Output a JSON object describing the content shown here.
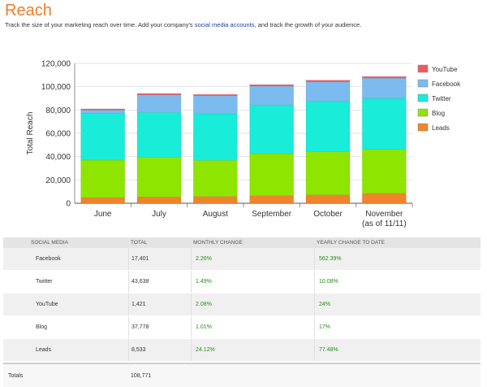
{
  "header": {
    "title": "Reach",
    "subtitle_before": "Track the size of your marketing reach over time. Add your company's ",
    "subtitle_link": "social media accounts",
    "subtitle_after": ", and track the growth of your audience."
  },
  "chart_data": {
    "type": "bar",
    "stacked": true,
    "ylabel": "Total Reach",
    "ylim": [
      0,
      120000
    ],
    "yticks": [
      "0",
      "20,000",
      "40,000",
      "60,000",
      "80,000",
      "100,000",
      "120,000"
    ],
    "ytick_values": [
      0,
      20000,
      40000,
      60000,
      80000,
      100000,
      120000
    ],
    "categories": [
      "June",
      "July",
      "August",
      "September",
      "October",
      "November"
    ],
    "category_sublabels": [
      "",
      "",
      "",
      "",
      "",
      "(as of 11/11)"
    ],
    "legend_position": "right",
    "series": [
      {
        "name": "Leads",
        "color": "#f0842c",
        "values": [
          5000,
          5500,
          5800,
          6500,
          7200,
          8533
        ]
      },
      {
        "name": "Blog",
        "color": "#8ee600",
        "values": [
          32000,
          34000,
          31000,
          36000,
          37000,
          37778
        ]
      },
      {
        "name": "Twitter",
        "color": "#19ecd8",
        "values": [
          40000,
          38500,
          40000,
          42000,
          43500,
          43638
        ]
      },
      {
        "name": "Facebook",
        "color": "#7bbbef",
        "values": [
          3000,
          15000,
          15500,
          16000,
          16500,
          17401
        ]
      },
      {
        "name": "YouTube",
        "color": "#ef5a60",
        "values": [
          1000,
          1200,
          1100,
          1300,
          1400,
          1421
        ]
      }
    ]
  },
  "table": {
    "headers": [
      "SOCIAL MEDIA",
      "TOTAL",
      "MONTHLY CHANGE",
      "YEARLY CHANGE TO DATE"
    ],
    "rows": [
      {
        "name": "Facebook",
        "total": "17,401",
        "monthly": "2.26%",
        "yearly": "562.39%"
      },
      {
        "name": "Twitter",
        "total": "43,638",
        "monthly": "1.49%",
        "yearly": "10.08%"
      },
      {
        "name": "YouTube",
        "total": "1,421",
        "monthly": "2.08%",
        "yearly": "24%"
      },
      {
        "name": "Blog",
        "total": "37,778",
        "monthly": "1.01%",
        "yearly": "17%"
      },
      {
        "name": "Leads",
        "total": "8,533",
        "monthly": "24.12%",
        "yearly": "77.48%"
      }
    ],
    "totals_label": "Totals",
    "totals_value": "108,771"
  }
}
